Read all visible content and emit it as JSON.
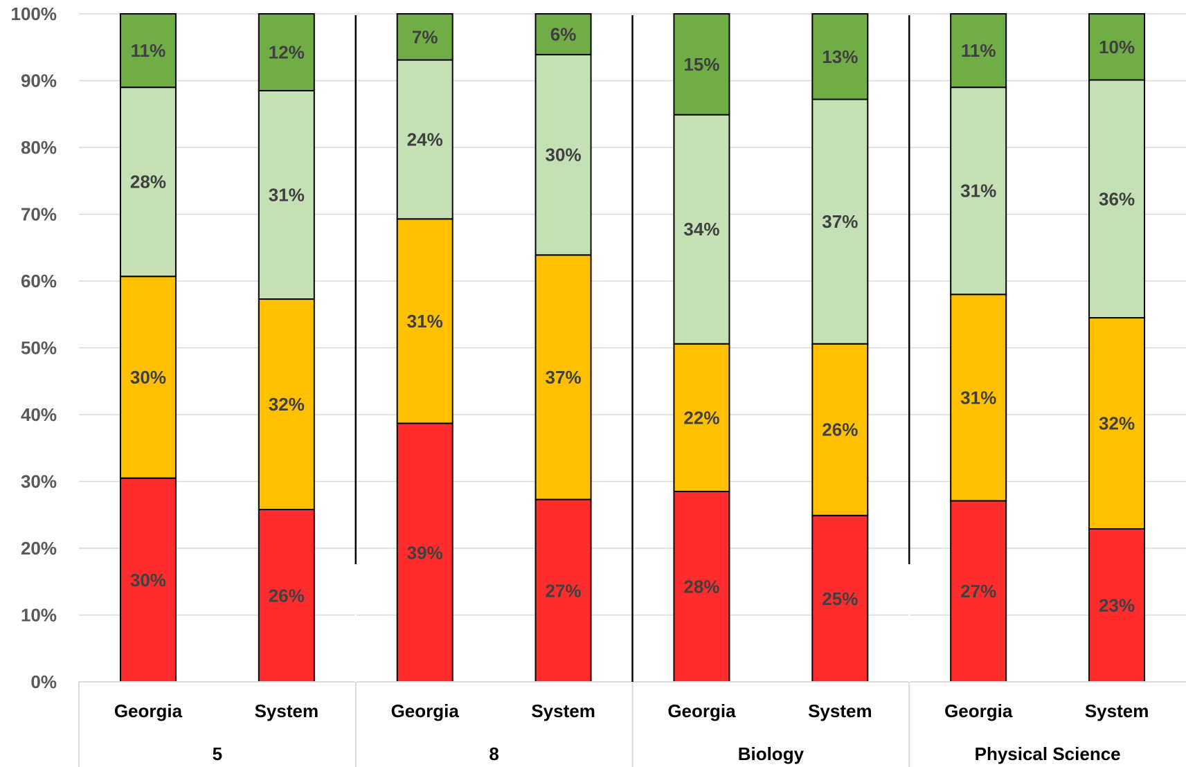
{
  "chart_data": {
    "type": "bar",
    "stacked": true,
    "title": "",
    "xlabel": "",
    "ylabel": "",
    "ylim": [
      0,
      100
    ],
    "y_ticks": [
      "0%",
      "10%",
      "20%",
      "30%",
      "40%",
      "50%",
      "60%",
      "70%",
      "80%",
      "90%",
      "100%"
    ],
    "grid": true,
    "groups": [
      "5",
      "8",
      "Biology",
      "Physical Science"
    ],
    "categories": [
      "Georgia",
      "System",
      "Georgia",
      "System",
      "Georgia",
      "System",
      "Georgia",
      "System"
    ],
    "series": [
      {
        "color": "#ff2d2d",
        "values": [
          30.5,
          25.8,
          38.7,
          27.3,
          28.5,
          24.9,
          27.1,
          22.9
        ],
        "labels": [
          "30%",
          "26%",
          "39%",
          "27%",
          "28%",
          "25%",
          "27%",
          "23%"
        ]
      },
      {
        "color": "#ffc000",
        "values": [
          30.2,
          31.5,
          30.6,
          36.6,
          22.1,
          25.7,
          30.9,
          31.6
        ],
        "labels": [
          "30%",
          "32%",
          "31%",
          "37%",
          "22%",
          "26%",
          "31%",
          "32%"
        ]
      },
      {
        "color": "#c5e0b4",
        "values": [
          28.3,
          31.2,
          23.8,
          30.0,
          34.3,
          36.6,
          31.0,
          35.6
        ],
        "labels": [
          "28%",
          "31%",
          "24%",
          "30%",
          "34%",
          "37%",
          "31%",
          "36%"
        ]
      },
      {
        "color": "#70ad47",
        "values": [
          11.0,
          11.5,
          6.9,
          6.1,
          15.1,
          12.8,
          11.0,
          9.9
        ],
        "labels": [
          "11%",
          "12%",
          "7%",
          "6%",
          "15%",
          "13%",
          "11%",
          "10%"
        ]
      }
    ]
  }
}
